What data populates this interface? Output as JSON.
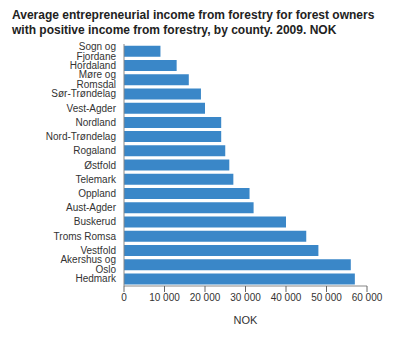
{
  "chart_data": {
    "type": "bar",
    "title": "Average entrepreneurial income from forestry for forest owners with positive income from forestry, by county. 2009. NOK",
    "orientation": "horizontal",
    "categories": [
      "Sogn og Fjordane",
      "Hordaland",
      "Møre og Romsdal",
      "Sør-Trøndelag",
      "Vest-Agder",
      "Nordland",
      "Nord-Trøndelag",
      "Rogaland",
      "Østfold",
      "Telemark",
      "Oppland",
      "Aust-Agder",
      "Buskerud",
      "Troms Romsa",
      "Vestfold",
      "Akershus og Oslo",
      "Hedmark"
    ],
    "values": [
      9000,
      13000,
      16000,
      19000,
      20000,
      24000,
      24000,
      25000,
      26000,
      27000,
      31000,
      32000,
      40000,
      45000,
      48000,
      56000,
      57000
    ],
    "color": "#3a87c8",
    "x_label": "NOK",
    "xlim": [
      0,
      60000
    ],
    "xticks": [
      0,
      {
        "value": 10000,
        "label": "10 000"
      },
      {
        "value": 20000,
        "label": "20 000"
      },
      {
        "value": 30000,
        "label": "30 000"
      },
      {
        "value": 40000,
        "label": "40 000"
      },
      {
        "value": 50000,
        "label": "50 000"
      },
      {
        "value": 60000,
        "label": "60 000"
      }
    ],
    "grid": false
  }
}
